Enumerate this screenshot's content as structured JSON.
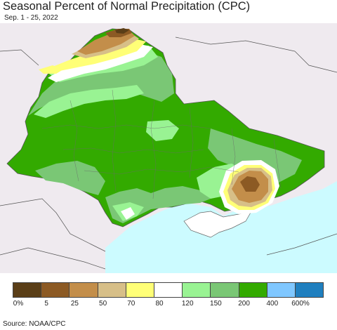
{
  "header": {
    "title": "Seasonal Percent of Normal Precipitation (CPC)",
    "date_range": "Sep. 1 - 25, 2022"
  },
  "map": {
    "region_shown": "Ukraine",
    "colors": {
      "background_land": "#efeaef",
      "sea": "#ccfbff",
      "border": "#555555"
    }
  },
  "legend": {
    "bins": [
      {
        "color": "#5a3e17"
      },
      {
        "color": "#8c5a24"
      },
      {
        "color": "#c38e4a"
      },
      {
        "color": "#d7bf88"
      },
      {
        "color": "#ffff77"
      },
      {
        "color": "#ffffff"
      },
      {
        "color": "#99f393"
      },
      {
        "color": "#7ac775"
      },
      {
        "color": "#33aa00"
      },
      {
        "color": "#7fc7ff"
      },
      {
        "color": "#1f7fbf"
      }
    ],
    "ticks": [
      "0%",
      "5",
      "25",
      "50",
      "70",
      "80",
      "120",
      "150",
      "200",
      "400",
      "600%"
    ]
  },
  "footer": {
    "source": "Source: NOAA/CPC"
  }
}
